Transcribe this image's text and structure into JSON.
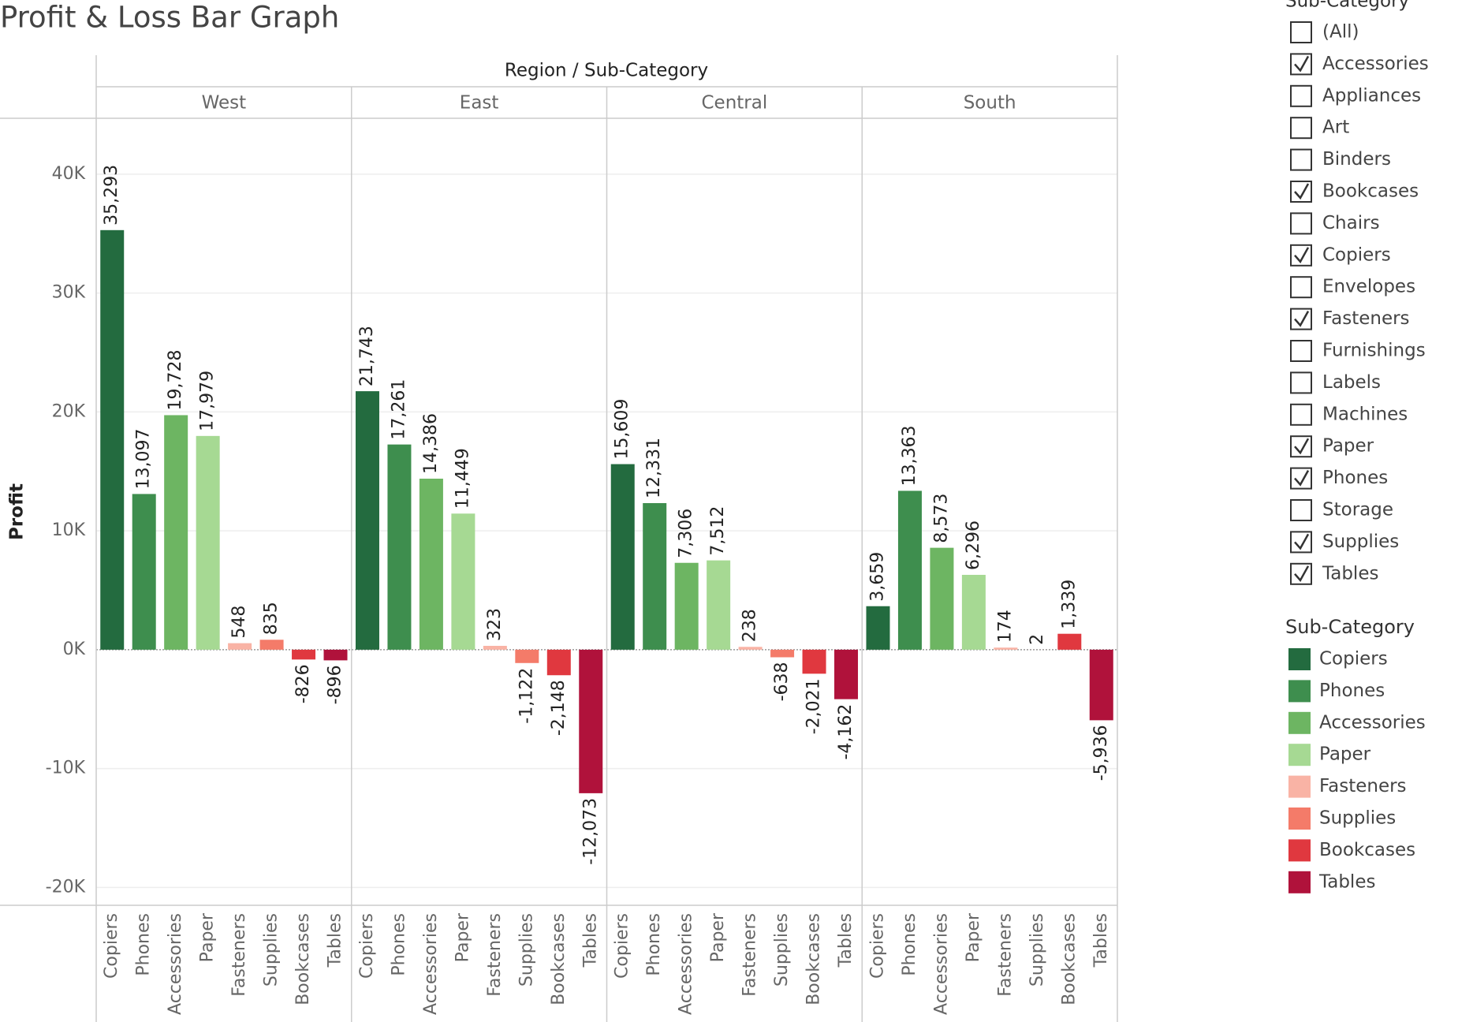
{
  "chart_data": {
    "type": "bar",
    "title": "Profit & Loss Bar Graph",
    "x_label": "Region / Sub-Category",
    "y_label": "Profit",
    "categories": [
      "Copiers",
      "Phones",
      "Accessories",
      "Paper",
      "Fasteners",
      "Supplies",
      "Bookcases",
      "Tables"
    ],
    "colors": [
      "#236b3f",
      "#3e8e4e",
      "#6db562",
      "#a6d993",
      "#f9b3a5",
      "#f47b69",
      "#e0383f",
      "#b0123b"
    ],
    "panels": [
      {
        "name": "West",
        "values": [
          35293,
          13097,
          19728,
          17979,
          548,
          835,
          -826,
          -896
        ],
        "value_labels": [
          "35,293",
          "13,097",
          "19,728",
          "17,979",
          "548",
          "835",
          "-826",
          "-896"
        ]
      },
      {
        "name": "East",
        "values": [
          21743,
          17261,
          14386,
          11449,
          323,
          -1122,
          -2148,
          -12073
        ],
        "value_labels": [
          "21,743",
          "17,261",
          "14,386",
          "11,449",
          "323",
          "-1,122",
          "-2,148",
          "-12,073"
        ]
      },
      {
        "name": "Central",
        "values": [
          15609,
          12331,
          7306,
          7512,
          238,
          -638,
          -2021,
          -4162
        ],
        "value_labels": [
          "15,609",
          "12,331",
          "7,306",
          "7,512",
          "238",
          "-638",
          "-2,021",
          "-4,162"
        ]
      },
      {
        "name": "South",
        "values": [
          3659,
          13363,
          8573,
          6296,
          174,
          2,
          1339,
          -5936
        ],
        "value_labels": [
          "3,659",
          "13,363",
          "8,573",
          "6,296",
          "174",
          "2",
          "1,339",
          "-5,936"
        ]
      }
    ],
    "ylim": [
      -21500,
      44700
    ],
    "yticks": [
      {
        "value": -20000,
        "label": "-20K"
      },
      {
        "value": -10000,
        "label": "-10K"
      },
      {
        "value": 0,
        "label": "0K"
      },
      {
        "value": 10000,
        "label": "10K"
      },
      {
        "value": 20000,
        "label": "20K"
      },
      {
        "value": 30000,
        "label": "30K"
      },
      {
        "value": 40000,
        "label": "40K"
      }
    ],
    "grid": true,
    "legend_title": "Sub-Category"
  },
  "filter": {
    "title": "Sub-Category",
    "items": [
      {
        "label": "(All)",
        "checked": false
      },
      {
        "label": "Accessories",
        "checked": true
      },
      {
        "label": "Appliances",
        "checked": false
      },
      {
        "label": "Art",
        "checked": false
      },
      {
        "label": "Binders",
        "checked": false
      },
      {
        "label": "Bookcases",
        "checked": true
      },
      {
        "label": "Chairs",
        "checked": false
      },
      {
        "label": "Copiers",
        "checked": true
      },
      {
        "label": "Envelopes",
        "checked": false
      },
      {
        "label": "Fasteners",
        "checked": true
      },
      {
        "label": "Furnishings",
        "checked": false
      },
      {
        "label": "Labels",
        "checked": false
      },
      {
        "label": "Machines",
        "checked": false
      },
      {
        "label": "Paper",
        "checked": true
      },
      {
        "label": "Phones",
        "checked": true
      },
      {
        "label": "Storage",
        "checked": false
      },
      {
        "label": "Supplies",
        "checked": true
      },
      {
        "label": "Tables",
        "checked": true
      }
    ]
  }
}
